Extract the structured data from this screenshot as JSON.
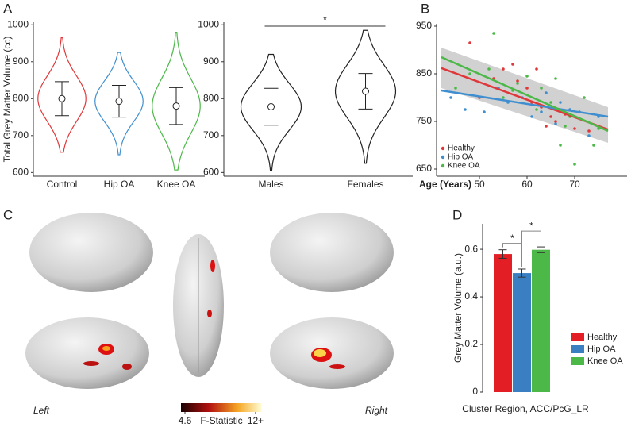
{
  "chart_data": [
    {
      "type": "violin",
      "panel": "A",
      "ylabel": "Total Grey Matter Volume (cc)",
      "categories": [
        "Control",
        "Hip OA",
        "Knee OA"
      ],
      "colors": [
        "#e0383a",
        "#3f8fd0",
        "#4cb848"
      ],
      "values": [
        800,
        793,
        780
      ],
      "errors": [
        46,
        43,
        50
      ],
      "mins": [
        655,
        648,
        607
      ],
      "maxs": [
        965,
        925,
        980
      ],
      "ylim": [
        590,
        1007
      ],
      "yticks": [
        600,
        700,
        800,
        900,
        1000
      ]
    },
    {
      "type": "violin",
      "categories": [
        "Males",
        "Females"
      ],
      "colors": [
        "#222222",
        "#222222"
      ],
      "values": [
        778,
        820
      ],
      "errors": [
        50,
        48
      ],
      "mins": [
        605,
        625
      ],
      "maxs": [
        920,
        985
      ],
      "annotation": "*",
      "ylim": [
        590,
        1007
      ],
      "yticks": [
        600,
        700,
        800,
        900,
        1000
      ]
    },
    {
      "type": "scatter",
      "panel": "B",
      "xlabel": "Age (Years)",
      "xlim": [
        41,
        81
      ],
      "ylim": [
        635,
        955
      ],
      "xticks": [
        50,
        60,
        70
      ],
      "yticks": [
        650,
        750,
        850,
        950
      ],
      "ci_x": [
        42,
        77
      ],
      "ci_lower": [
        820,
        705
      ],
      "ci_upper": [
        905,
        780
      ],
      "series": [
        {
          "name": "Healthy",
          "color": "#e0383a",
          "x": [
            48,
            50,
            53,
            55,
            57,
            58,
            60,
            61,
            62,
            63,
            64,
            65,
            66,
            68,
            70,
            73
          ],
          "values": [
            915,
            800,
            840,
            860,
            870,
            835,
            820,
            790,
            860,
            780,
            740,
            760,
            750,
            765,
            735,
            730
          ],
          "fit_x": [
            42,
            77
          ],
          "fit_values": [
            862,
            733
          ]
        },
        {
          "name": "Hip OA",
          "color": "#3f8fd0",
          "x": [
            44,
            47,
            51,
            54,
            56,
            59,
            61,
            63,
            64,
            66,
            67,
            69,
            71,
            73,
            75
          ],
          "values": [
            800,
            775,
            770,
            820,
            790,
            800,
            760,
            770,
            810,
            745,
            790,
            775,
            770,
            720,
            760
          ],
          "fit_x": [
            42,
            77
          ],
          "fit_values": [
            815,
            760
          ]
        },
        {
          "name": "Knee OA",
          "color": "#4cb848",
          "x": [
            45,
            48,
            52,
            53,
            55,
            57,
            58,
            60,
            62,
            63,
            65,
            66,
            67,
            68,
            69,
            70,
            72,
            74,
            75
          ],
          "values": [
            820,
            850,
            860,
            935,
            800,
            815,
            830,
            845,
            775,
            820,
            790,
            840,
            700,
            740,
            760,
            660,
            800,
            700,
            735
          ],
          "fit_x": [
            42,
            77
          ],
          "fit_values": [
            885,
            730
          ]
        }
      ]
    },
    {
      "type": "image",
      "panel": "C",
      "labels": [
        "Left",
        "Right"
      ],
      "colorbar_label": "F-Statistic",
      "colorbar_lim": [
        4.6,
        12
      ],
      "colorbar_ticks": [
        4.6,
        {
          "value": 12,
          "label": "12+"
        }
      ]
    },
    {
      "type": "bar",
      "panel": "D",
      "ylabel": "Grey Matter Volume (a.u.)",
      "xlabel": "Cluster Region, ACC/PcG_LR",
      "ylim": [
        0,
        0.707
      ],
      "yticks": [
        0,
        0.2,
        0.4,
        0.6
      ],
      "annotations": [
        "*",
        "*"
      ],
      "series": [
        {
          "name": "Healthy",
          "color": "#e31e24",
          "values": [
            0.58
          ],
          "errors": [
            0.018
          ]
        },
        {
          "name": "Hip OA",
          "color": "#3a7fc1",
          "values": [
            0.5
          ],
          "errors": [
            0.017
          ]
        },
        {
          "name": "Knee OA",
          "color": "#4cb848",
          "values": [
            0.598
          ],
          "errors": [
            0.012
          ]
        }
      ]
    }
  ]
}
